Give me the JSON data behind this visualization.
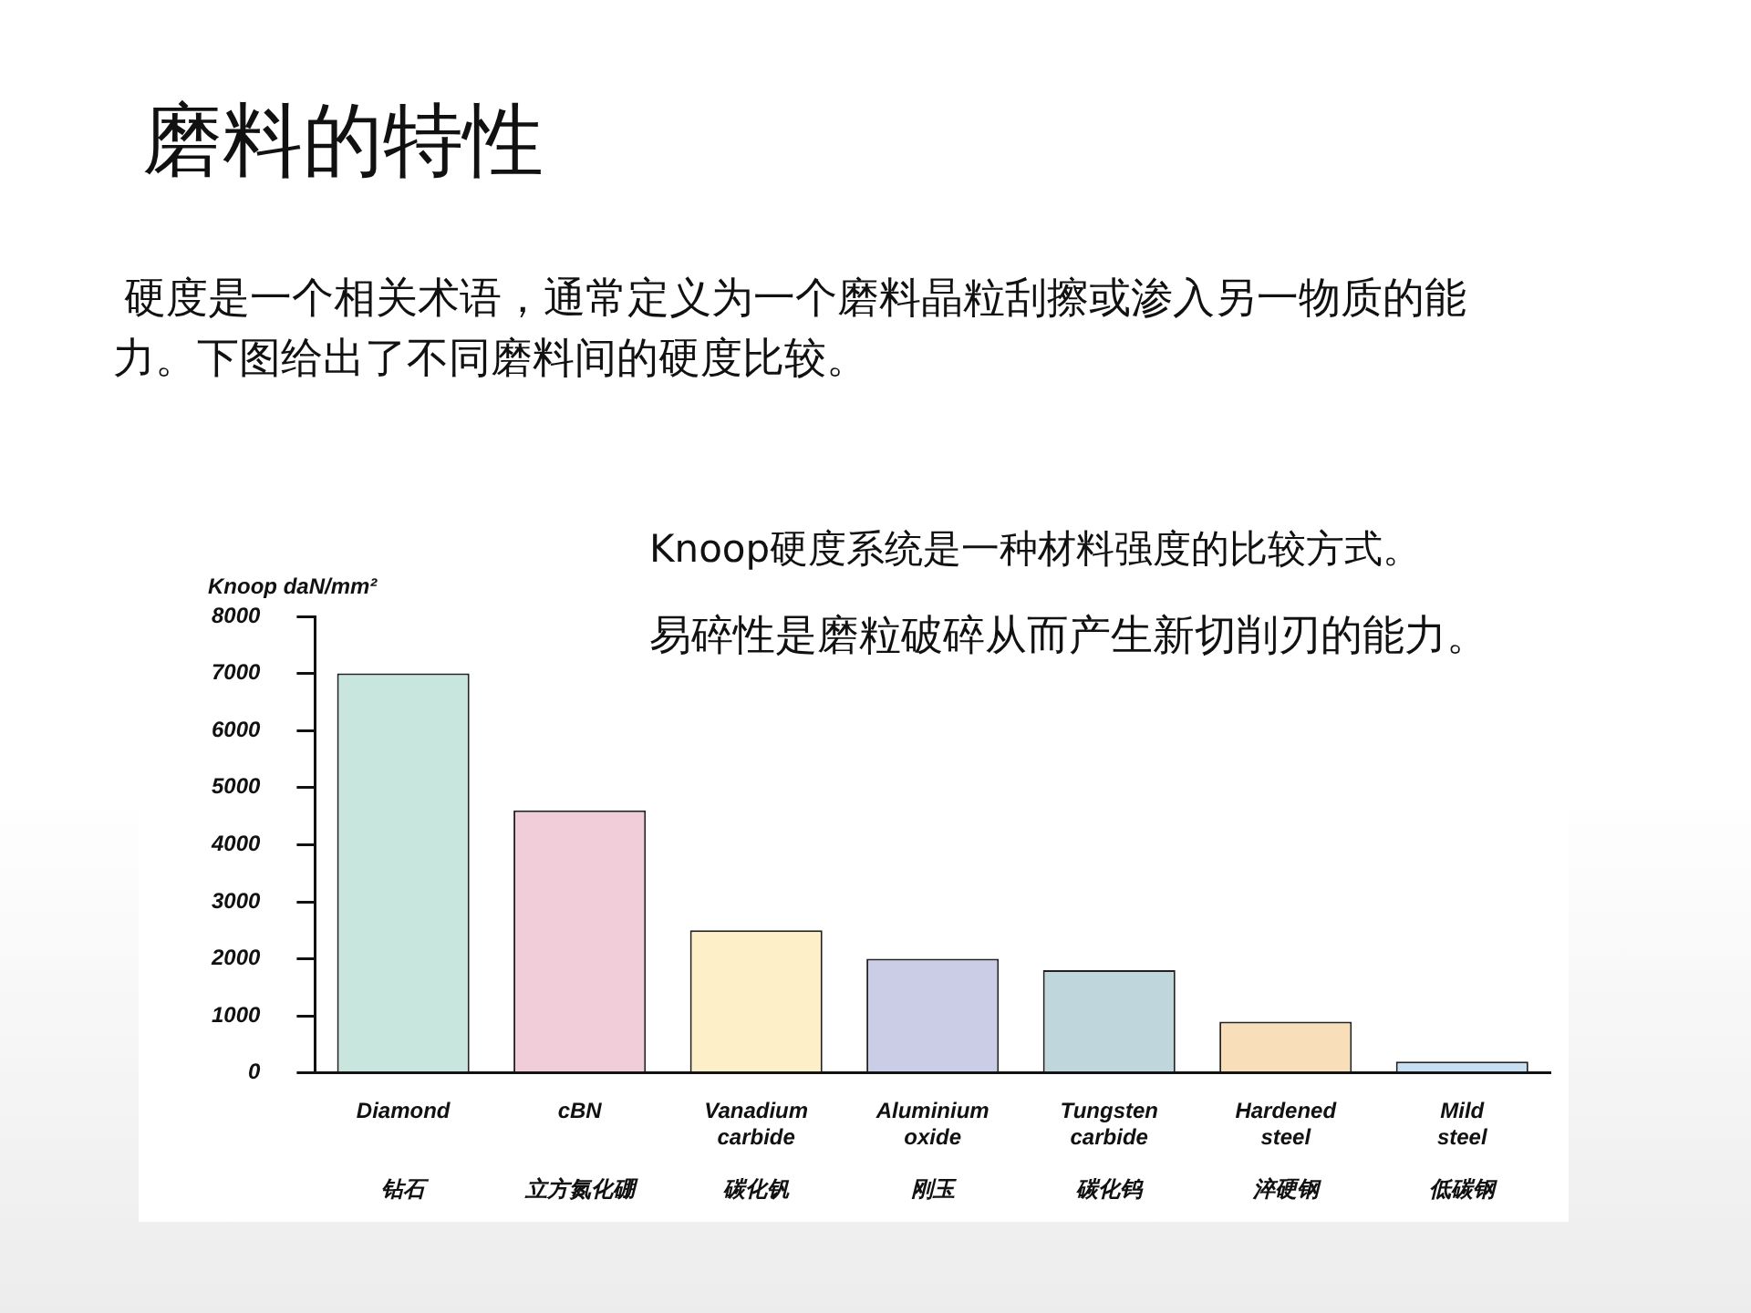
{
  "chart_data": {
    "type": "bar",
    "title": "磨料的特性",
    "ylabel": "Knoop daN/mm²",
    "annotations": [
      "硬度是一个相关术语，通常定义为一个磨料晶粒刮擦或渗入另一物质的能力。下图给出了不同磨料间的硬度比较。",
      "Knoop硬度系统是一种材料强度的比较方式。",
      "易碎性是磨粒破碎从而产生新切削刃的能力。"
    ],
    "categories": [
      "Diamond\n\n\n钻石",
      "cBN\n\n\n立方氮化硼",
      "Vanadium\ncarbide\n\n碳化钒",
      "Aluminium\noxide\n\n刚玉",
      "Tungsten\ncarbide\n\n碳化钨",
      "Hardened\nsteel\n\n淬硬钢",
      "Mild\nsteel\n\n低碳钢"
    ],
    "values": [
      7000,
      4600,
      2500,
      2000,
      1800,
      900,
      200
    ],
    "colors": [
      "#c9e6de",
      "#f1cdd9",
      "#fdf0c9",
      "#cbcde6",
      "#bed6dc",
      "#f8dfb9",
      "#c7dff0"
    ],
    "ylim": [
      0,
      8000
    ],
    "yticks": [
      0,
      1000,
      2000,
      3000,
      4000,
      5000,
      6000,
      7000,
      8000
    ],
    "grid": false,
    "legend": false
  }
}
